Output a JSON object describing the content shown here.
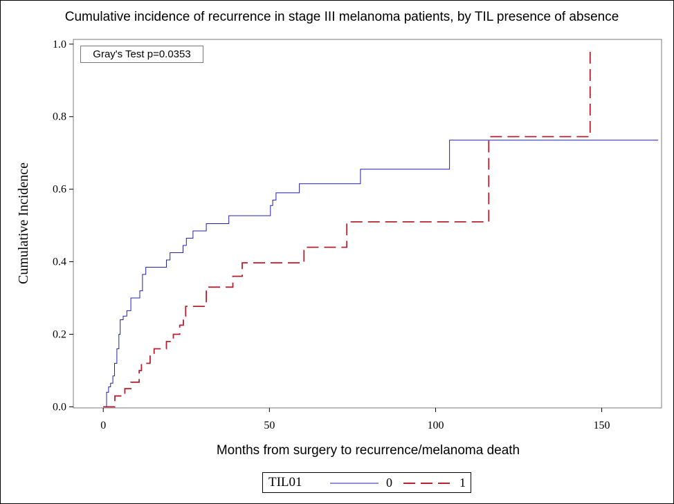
{
  "chart_data": {
    "type": "line",
    "title": "Cumulative incidence of recurrence in stage III melanoma patients, by TIL presence of absence",
    "xlabel": "Months from surgery to recurrence/melanoma death",
    "ylabel": "Cumulative Incidence",
    "xlim": [
      -9,
      168
    ],
    "ylim": [
      -0.003,
      1.013
    ],
    "xticks": [
      0,
      50,
      100,
      150
    ],
    "yticks": [
      0.0,
      0.2,
      0.4,
      0.6,
      0.8,
      1.0
    ],
    "xtick_labels": [
      "0",
      "50",
      "100",
      "150"
    ],
    "ytick_labels": [
      "0.0",
      "0.2",
      "0.4",
      "0.6",
      "0.8",
      "1.0"
    ],
    "annotation": "Gray's Test p=0.0353",
    "grid": false,
    "legend": {
      "title": "TIL01",
      "placement": "bottom-center"
    },
    "series": [
      {
        "name": "0",
        "color": "#1f1fb4",
        "style": "solid",
        "steps": [
          [
            0,
            0.0
          ],
          [
            1.0,
            0.04
          ],
          [
            1.6,
            0.055
          ],
          [
            2.2,
            0.065
          ],
          [
            2.9,
            0.085
          ],
          [
            3.4,
            0.12
          ],
          [
            4.1,
            0.16
          ],
          [
            4.7,
            0.2
          ],
          [
            5.1,
            0.24
          ],
          [
            6.0,
            0.25
          ],
          [
            7.1,
            0.265
          ],
          [
            8.3,
            0.3
          ],
          [
            11.0,
            0.32
          ],
          [
            11.8,
            0.365
          ],
          [
            12.8,
            0.385
          ],
          [
            19.0,
            0.405
          ],
          [
            20.1,
            0.425
          ],
          [
            24.0,
            0.445
          ],
          [
            25.0,
            0.465
          ],
          [
            27.0,
            0.485
          ],
          [
            31.0,
            0.505
          ],
          [
            37.8,
            0.527
          ],
          [
            50.3,
            0.555
          ],
          [
            51.0,
            0.57
          ],
          [
            52.0,
            0.59
          ],
          [
            59.0,
            0.615
          ],
          [
            77.4,
            0.655
          ],
          [
            104.2,
            0.735
          ],
          [
            167.0,
            0.735
          ]
        ]
      },
      {
        "name": "1",
        "color": "#b5202e",
        "style": "dashed",
        "steps": [
          [
            0,
            0.0
          ],
          [
            3.5,
            0.03
          ],
          [
            6.5,
            0.05
          ],
          [
            8.3,
            0.068
          ],
          [
            10.8,
            0.1
          ],
          [
            11.5,
            0.12
          ],
          [
            14.1,
            0.14
          ],
          [
            15.3,
            0.16
          ],
          [
            19.0,
            0.18
          ],
          [
            21.1,
            0.2
          ],
          [
            23.0,
            0.225
          ],
          [
            24.1,
            0.25
          ],
          [
            24.8,
            0.277
          ],
          [
            31.0,
            0.33
          ],
          [
            39.0,
            0.36
          ],
          [
            41.8,
            0.397
          ],
          [
            60.4,
            0.44
          ],
          [
            73.3,
            0.51
          ],
          [
            116.0,
            0.745
          ],
          [
            146.5,
            0.985
          ]
        ]
      }
    ]
  }
}
